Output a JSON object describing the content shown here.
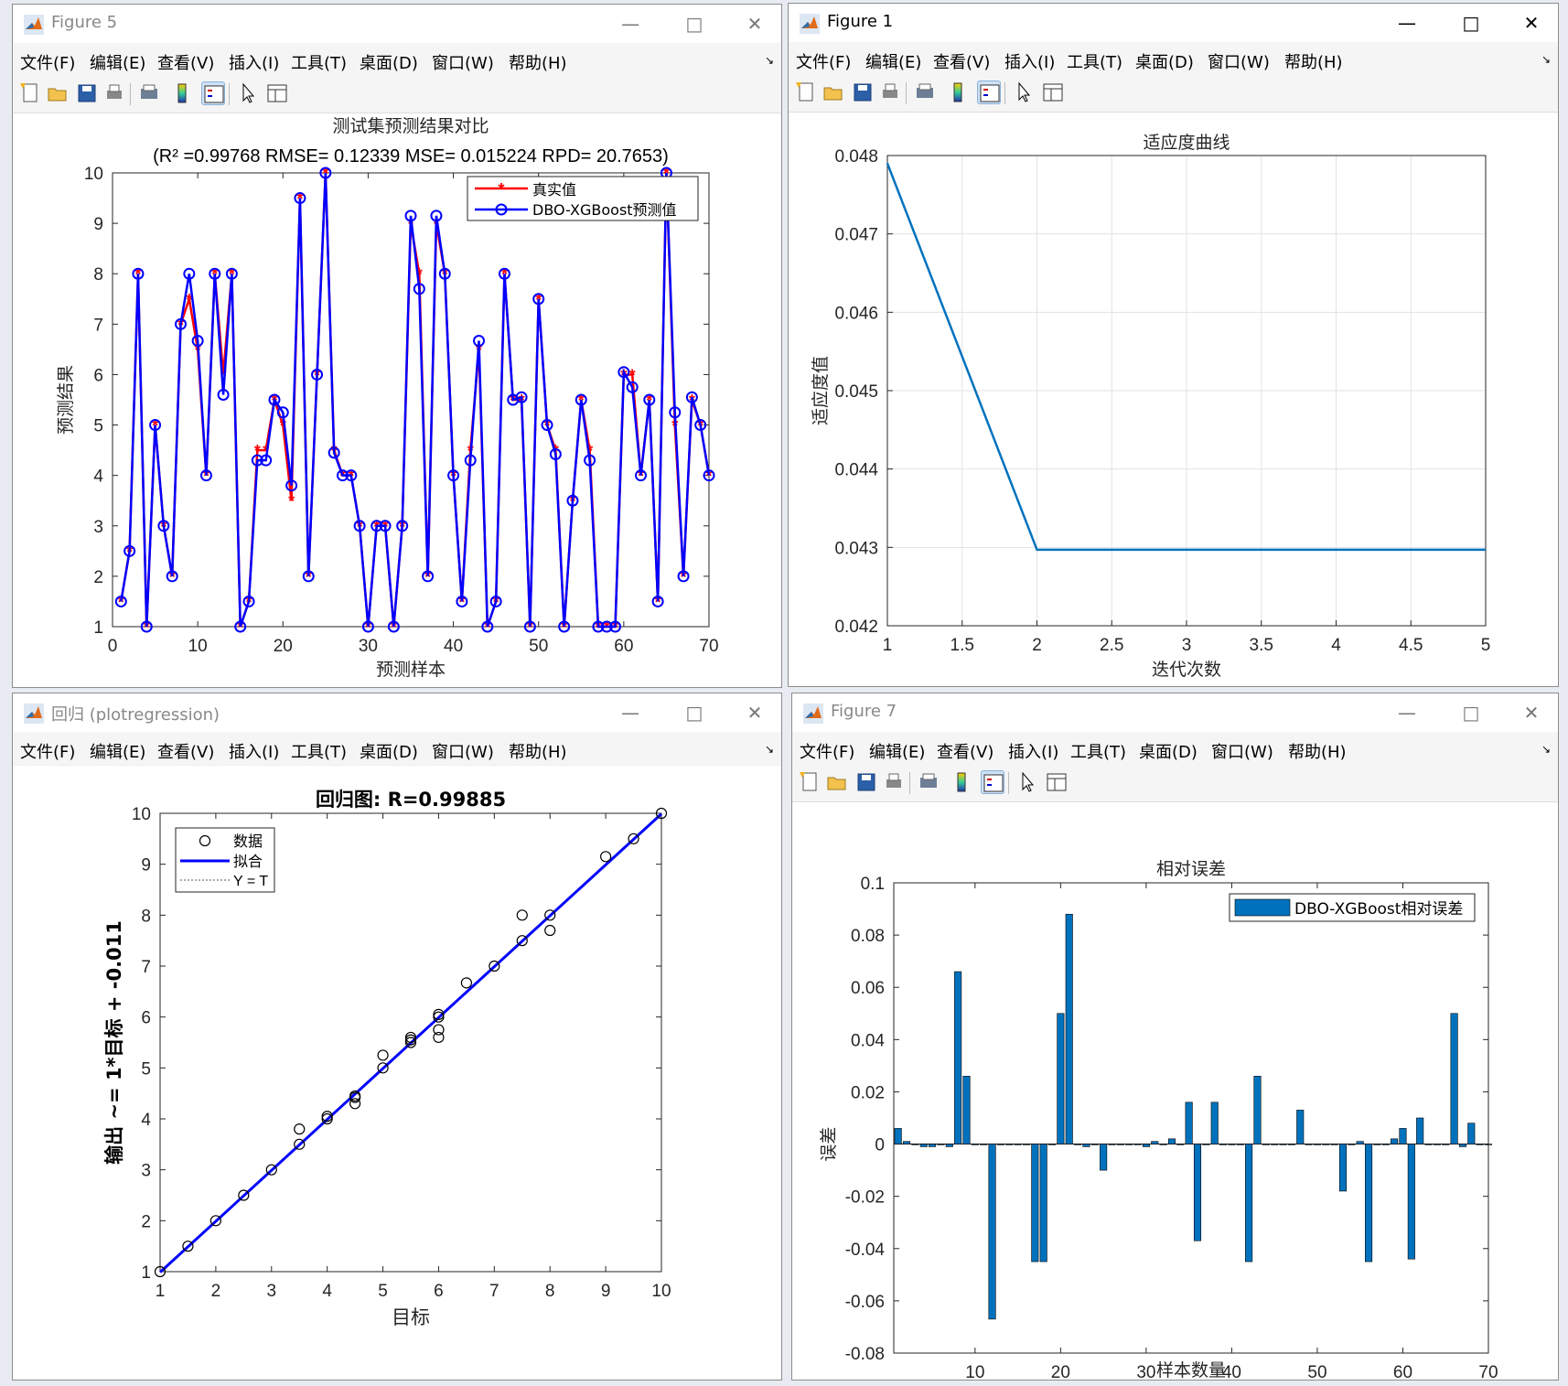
{
  "windows": {
    "fig5": {
      "title": "Figure 5",
      "menu": [
        "文件(F)",
        "编辑(E)",
        "查看(V)",
        "插入(I)",
        "工具(T)",
        "桌面(D)",
        "窗口(W)",
        "帮助(H)"
      ]
    },
    "fig1": {
      "title": "Figure 1",
      "menu": [
        "文件(F)",
        "编辑(E)",
        "查看(V)",
        "插入(I)",
        "工具(T)",
        "桌面(D)",
        "窗口(W)",
        "帮助(H)"
      ]
    },
    "reg": {
      "title": "回归 (plotregression)",
      "menu": [
        "文件(F)",
        "编辑(E)",
        "查看(V)",
        "插入(I)",
        "工具(T)",
        "桌面(D)",
        "窗口(W)",
        "帮助(H)"
      ]
    },
    "fig7": {
      "title": "Figure 7",
      "menu": [
        "文件(F)",
        "编辑(E)",
        "查看(V)",
        "插入(I)",
        "工具(T)",
        "桌面(D)",
        "窗口(W)",
        "帮助(H)"
      ]
    }
  },
  "toolbar_icons": [
    "new-file-icon",
    "open-folder-icon",
    "save-icon",
    "print-icon",
    "print-preview-icon",
    "colorbar-icon",
    "legend-icon",
    "pointer-icon",
    "property-editor-icon"
  ],
  "colors": {
    "red": "#ff0000",
    "blue": "#0000ff",
    "matlab_blue": "#0072bd",
    "bar_blue": "#0072bd"
  },
  "chart_data": [
    {
      "id": "fig5",
      "type": "line",
      "title": "测试集预测结果对比",
      "subtitle": "(R² =0.99768 RMSE= 0.12339 MSE= 0.015224 RPD= 20.7653)",
      "xlabel": "预测样本",
      "ylabel": "预测结果",
      "xlim": [
        0,
        70
      ],
      "ylim": [
        1,
        10
      ],
      "xticks": [
        0,
        10,
        20,
        30,
        40,
        50,
        60,
        70
      ],
      "yticks": [
        1,
        2,
        3,
        4,
        5,
        6,
        7,
        8,
        9,
        10
      ],
      "legend_position": "top-right",
      "x": [
        1,
        2,
        3,
        4,
        5,
        6,
        7,
        8,
        9,
        10,
        11,
        12,
        13,
        14,
        15,
        16,
        17,
        18,
        19,
        20,
        21,
        22,
        23,
        24,
        25,
        26,
        27,
        28,
        29,
        30,
        31,
        32,
        33,
        34,
        35,
        36,
        37,
        38,
        39,
        40,
        41,
        42,
        43,
        44,
        45,
        46,
        47,
        48,
        49,
        50,
        51,
        52,
        53,
        54,
        55,
        56,
        57,
        58,
        59,
        60,
        61,
        62,
        63,
        64,
        65,
        66,
        67,
        68,
        69,
        70
      ],
      "series": [
        {
          "name": "真实值",
          "values": [
            1.5,
            2.5,
            8,
            1,
            5,
            3,
            2,
            7,
            7.5,
            6.5,
            4,
            8,
            6,
            8,
            1,
            1.5,
            4.5,
            4.5,
            5.5,
            5,
            3.5,
            9.5,
            2,
            6,
            10,
            4.5,
            4,
            4,
            3,
            1,
            3,
            3,
            1,
            3,
            9,
            8,
            2,
            9,
            8,
            4,
            1.5,
            4.5,
            6.5,
            1,
            1.5,
            8,
            5.5,
            5.5,
            1,
            7.5,
            5,
            4.5,
            1,
            3.5,
            5.5,
            4.5,
            1,
            1,
            1,
            6,
            6,
            4,
            5.5,
            1.5,
            10,
            5,
            2,
            5.5,
            5,
            4
          ]
        },
        {
          "name": "DBO-XGBoost预测值",
          "values": [
            1.5,
            2.5,
            8,
            1,
            5,
            3,
            2,
            7,
            8,
            6.67,
            4,
            8,
            5.6,
            8,
            1,
            1.5,
            4.3,
            4.3,
            5.5,
            5.25,
            3.8,
            9.5,
            2,
            6,
            10,
            4.45,
            4,
            4,
            3,
            1,
            3,
            3,
            1,
            3,
            9.15,
            7.7,
            2,
            9.15,
            8,
            4,
            1.5,
            4.3,
            6.67,
            1,
            1.5,
            8,
            5.5,
            5.55,
            1,
            7.5,
            5,
            4.42,
            1,
            3.5,
            5.5,
            4.3,
            1,
            1,
            1,
            6.05,
            5.75,
            4,
            5.5,
            1.5,
            10,
            5.25,
            2,
            5.55,
            5,
            4
          ]
        }
      ]
    },
    {
      "id": "fig1",
      "type": "line",
      "title": "适应度曲线",
      "xlabel": "迭代次数",
      "ylabel": "适应度值",
      "xlim": [
        1,
        5
      ],
      "ylim": [
        0.042,
        0.048
      ],
      "xticks": [
        "1",
        "1.5",
        "2",
        "2.5",
        "3",
        "3.5",
        "4",
        "4.5",
        "5"
      ],
      "yticks": [
        "0.042",
        "0.043",
        "0.044",
        "0.045",
        "0.046",
        "0.047",
        "0.048"
      ],
      "grid": true,
      "x": [
        1,
        2,
        3,
        4,
        5
      ],
      "series": [
        {
          "values": [
            0.0479,
            0.04297,
            0.04297,
            0.04297,
            0.04297
          ]
        }
      ]
    },
    {
      "id": "reg",
      "type": "scatter",
      "title": "回归图: R=0.99885",
      "xlabel": "目标",
      "ylabel": "输出 ~= 1*目标 + -0.011",
      "xlim": [
        1,
        10
      ],
      "ylim": [
        1,
        10
      ],
      "xticks": [
        1,
        2,
        3,
        4,
        5,
        6,
        7,
        8,
        9,
        10
      ],
      "yticks": [
        1,
        2,
        3,
        4,
        5,
        6,
        7,
        8,
        9,
        10
      ],
      "legend_position": "top-left",
      "legend": [
        "数据",
        "拟合",
        "Y = T"
      ],
      "points": [
        [
          1,
          1
        ],
        [
          1.5,
          1.5
        ],
        [
          2,
          2
        ],
        [
          2.5,
          2.5
        ],
        [
          3,
          3
        ],
        [
          3.5,
          3.5
        ],
        [
          3.5,
          3.8
        ],
        [
          4,
          4
        ],
        [
          4,
          4.05
        ],
        [
          4.5,
          4.3
        ],
        [
          4.5,
          4.42
        ],
        [
          4.5,
          4.45
        ],
        [
          5,
          5
        ],
        [
          5,
          5.25
        ],
        [
          5.5,
          5.5
        ],
        [
          5.5,
          5.55
        ],
        [
          5.5,
          5.6
        ],
        [
          6,
          5.6
        ],
        [
          6,
          5.75
        ],
        [
          6,
          6
        ],
        [
          6,
          6.05
        ],
        [
          6.5,
          6.67
        ],
        [
          7,
          7
        ],
        [
          7.5,
          7.5
        ],
        [
          7.5,
          8
        ],
        [
          8,
          7.7
        ],
        [
          8,
          8
        ],
        [
          9,
          9.15
        ],
        [
          9.5,
          9.5
        ],
        [
          10,
          10
        ]
      ],
      "fit": {
        "slope": 1,
        "intercept": -0.011
      }
    },
    {
      "id": "fig7",
      "type": "bar",
      "title": "相对误差",
      "xlabel": "样本数量",
      "ylabel": "误差",
      "xlim": [
        0.5,
        70
      ],
      "ylim": [
        -0.08,
        0.1
      ],
      "xticks": [
        10,
        20,
        30,
        40,
        50,
        60,
        70
      ],
      "yticks": [
        "-0.08",
        "-0.06",
        "-0.04",
        "-0.02",
        "0",
        "0.02",
        "0.04",
        "0.06",
        "0.08",
        "0.1"
      ],
      "legend_position": "top-right",
      "series": [
        {
          "name": "DBO-XGBoost相对误差",
          "x": [
            1,
            2,
            3,
            4,
            5,
            6,
            7,
            8,
            9,
            10,
            11,
            12,
            13,
            14,
            15,
            16,
            17,
            18,
            19,
            20,
            21,
            22,
            23,
            24,
            25,
            26,
            27,
            28,
            29,
            30,
            31,
            32,
            33,
            34,
            35,
            36,
            37,
            38,
            39,
            40,
            41,
            42,
            43,
            44,
            45,
            46,
            47,
            48,
            49,
            50,
            51,
            52,
            53,
            54,
            55,
            56,
            57,
            58,
            59,
            60,
            61,
            62,
            63,
            64,
            65,
            66,
            67,
            68,
            69,
            70
          ],
          "values": [
            0.006,
            0.001,
            0,
            -0.001,
            -0.001,
            0,
            -0.001,
            0.066,
            0.026,
            0,
            0,
            -0.067,
            0,
            0,
            0,
            0,
            -0.045,
            -0.045,
            0,
            0.05,
            0.088,
            0,
            -0.001,
            0,
            -0.01,
            0,
            0,
            0,
            0,
            -0.001,
            0.001,
            0,
            0.002,
            0,
            0.016,
            -0.037,
            0,
            0.016,
            0,
            0,
            0,
            -0.045,
            0.026,
            0,
            0,
            0,
            0,
            0.013,
            0,
            0,
            0,
            0,
            -0.018,
            0,
            0.001,
            -0.045,
            0,
            0,
            0.002,
            0.006,
            -0.044,
            0.01,
            0,
            0,
            0,
            0.05,
            -0.001,
            0.008,
            0,
            0
          ]
        }
      ]
    }
  ]
}
